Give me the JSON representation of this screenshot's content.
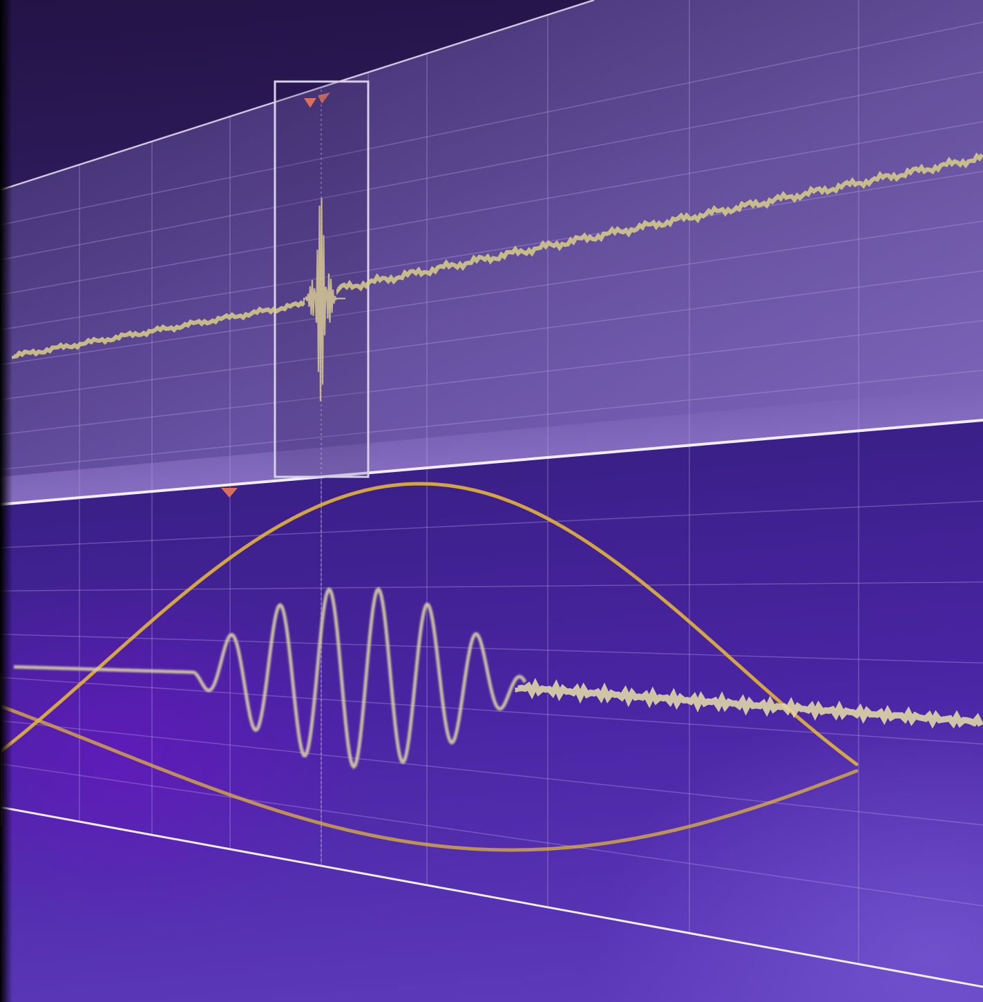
{
  "scene": {
    "description_free": true,
    "colors": {
      "background_dark": "#231346",
      "background_mid": "#3a1f86",
      "background_light": "#5e3cbc",
      "upper_panel": "#7a66b8",
      "grid_line": "#b9a8e6",
      "trace_noisy": "#d8cf86",
      "trace_sine": "#e2b43a",
      "marker": "#d9705a",
      "zoom_box": "#d6d0ea"
    },
    "icons": [
      "trigger-marker-icon",
      "zoom-marker-icon"
    ]
  }
}
